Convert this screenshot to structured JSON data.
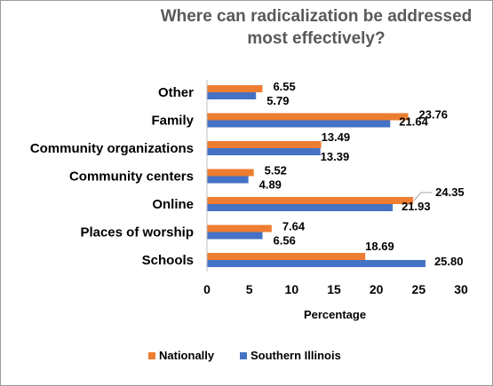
{
  "chart_data": {
    "type": "bar",
    "orientation": "horizontal",
    "title": "Where can radicalization be addressed most effectively?",
    "title_lines": [
      "Where can radicalization be addressed",
      "most effectively?"
    ],
    "categories": [
      "Other",
      "Family",
      "Community organizations",
      "Community centers",
      "Online",
      "Places of worship",
      "Schools"
    ],
    "series": [
      {
        "name": "Nationally",
        "color": "#ED7D31",
        "values": [
          6.55,
          23.76,
          13.49,
          5.52,
          24.35,
          7.64,
          18.69
        ]
      },
      {
        "name": "Southern Illinois",
        "color": "#4472C4",
        "values": [
          5.79,
          21.64,
          13.39,
          4.89,
          21.93,
          6.56,
          25.8
        ]
      }
    ],
    "value_labels": [
      [
        "6.55",
        "23.76",
        "13.49",
        "5.52",
        "24.35",
        "7.64",
        "18.69"
      ],
      [
        "5.79",
        "21.64",
        "13.39",
        "4.89",
        "21.93",
        "6.56",
        "25.80"
      ]
    ],
    "xlabel": "Percentage",
    "ylabel": "",
    "xlim": [
      0,
      30
    ],
    "xticks": [
      "0",
      "5",
      "10",
      "15",
      "20",
      "25",
      "30"
    ],
    "grid": false,
    "legend": "bottom"
  }
}
